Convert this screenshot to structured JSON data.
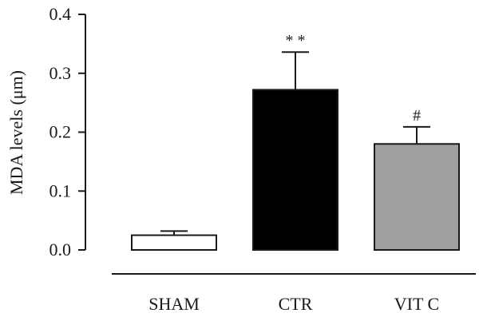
{
  "chart_data": {
    "type": "bar",
    "categories": [
      "SHAM",
      "CTR",
      "VIT C"
    ],
    "values": [
      0.025,
      0.272,
      0.18
    ],
    "errors": [
      0.007,
      0.064,
      0.029
    ],
    "bar_colors": [
      "#ffffff",
      "#000000",
      "#a0a0a0"
    ],
    "significance": [
      "",
      "* *",
      "#"
    ],
    "ylabel": "MDA levels (μm)",
    "xlabel": "",
    "ylim": [
      0,
      0.4
    ],
    "yticks": [
      0.0,
      0.1,
      0.2,
      0.3,
      0.4
    ],
    "ytick_labels": [
      "0.0",
      "0.1",
      "0.2",
      "0.3",
      "0.4"
    ],
    "grid": false,
    "legend": "none"
  }
}
